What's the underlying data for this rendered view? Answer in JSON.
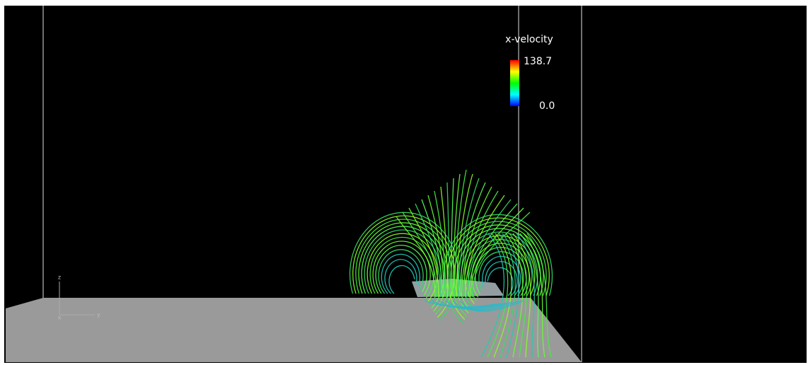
{
  "colorbar": {
    "title": "x-velocity",
    "max_label": "138.7",
    "min_label": "0.0"
  },
  "axes_triad": {
    "z": "z",
    "x": "x",
    "y": "y"
  }
}
